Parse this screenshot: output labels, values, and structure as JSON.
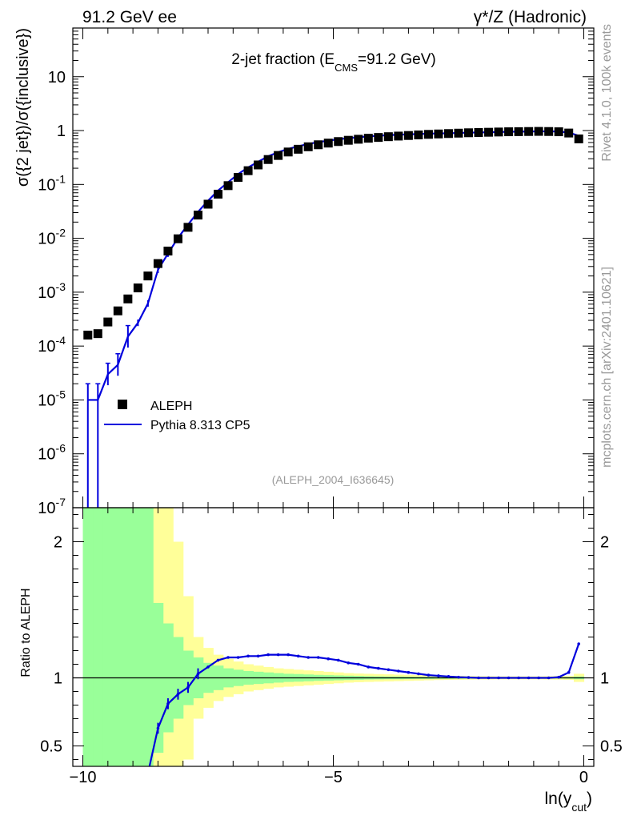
{
  "header": {
    "left": "91.2 GeV ee",
    "right": "γ*/Z (Hadronic)"
  },
  "side_text": {
    "rivet": "Rivet 4.1.0,  100k events",
    "site": "mcplots.cern.ch [arXiv:2401.10621]"
  },
  "colors": {
    "data": "#000000",
    "mc": "#0000dd",
    "band_inner": "#99ff99",
    "band_outer": "#ffff99"
  },
  "chart_data": [
    {
      "type": "scatter",
      "title": "2-jet fraction (E_CMS=91.2 GeV)",
      "title_parts": {
        "main": "2-jet fraction (E",
        "sub": "CMS",
        "tail": "=91.2 GeV)"
      },
      "analysis_tag": "(ALEPH_2004_I636645)",
      "ylabel": "σ({2 jet})/σ({inclusive})",
      "yscale": "log",
      "ylim": [
        1e-07,
        80
      ],
      "xlim": [
        -10.2,
        0.2
      ],
      "yticks": [
        {
          "base": "10",
          "exp": "-7",
          "value": 1e-07
        },
        {
          "base": "10",
          "exp": "-6",
          "value": 1e-06
        },
        {
          "base": "10",
          "exp": "-5",
          "value": 1e-05
        },
        {
          "base": "10",
          "exp": "-4",
          "value": 0.0001
        },
        {
          "base": "10",
          "exp": "-3",
          "value": 0.001
        },
        {
          "base": "10",
          "exp": "-2",
          "value": 0.01
        },
        {
          "base": "10",
          "exp": "-1",
          "value": 0.1
        },
        {
          "base": "1",
          "exp": "",
          "value": 1
        },
        {
          "base": "10",
          "exp": "",
          "value": 10
        }
      ],
      "legend": {
        "placement": "middle-left",
        "entries": [
          "ALEPH",
          "Pythia 8.313 CP5"
        ]
      },
      "x": [
        -9.9,
        -9.7,
        -9.5,
        -9.3,
        -9.1,
        -8.9,
        -8.7,
        -8.5,
        -8.3,
        -8.1,
        -7.9,
        -7.7,
        -7.5,
        -7.3,
        -7.1,
        -6.9,
        -6.7,
        -6.5,
        -6.3,
        -6.1,
        -5.9,
        -5.7,
        -5.5,
        -5.3,
        -5.1,
        -4.9,
        -4.7,
        -4.5,
        -4.3,
        -4.1,
        -3.9,
        -3.7,
        -3.5,
        -3.3,
        -3.1,
        -2.9,
        -2.7,
        -2.5,
        -2.3,
        -2.1,
        -1.9,
        -1.7,
        -1.5,
        -1.3,
        -1.1,
        -0.9,
        -0.7,
        -0.5,
        -0.3,
        -0.1
      ],
      "series": [
        {
          "name": "ALEPH",
          "marker": "square",
          "values": [
            0.00016,
            0.00017,
            0.00028,
            0.00045,
            0.00075,
            0.0012,
            0.002,
            0.0034,
            0.0058,
            0.0098,
            0.016,
            0.027,
            0.043,
            0.066,
            0.095,
            0.135,
            0.18,
            0.23,
            0.29,
            0.345,
            0.4,
            0.45,
            0.5,
            0.545,
            0.585,
            0.625,
            0.66,
            0.69,
            0.72,
            0.745,
            0.77,
            0.79,
            0.81,
            0.83,
            0.85,
            0.865,
            0.88,
            0.895,
            0.91,
            0.92,
            0.93,
            0.94,
            0.95,
            0.955,
            0.96,
            0.965,
            0.96,
            0.95,
            0.9,
            0.7
          ]
        },
        {
          "name": "Pythia 8.313 CP5",
          "marker": "line",
          "values": [
            1e-05,
            1e-05,
            3e-05,
            4.5e-05,
            0.00015,
            0.00027,
            0.00062,
            0.0026,
            0.0052,
            0.0102,
            0.018,
            0.031,
            0.05,
            0.077,
            0.11,
            0.156,
            0.207,
            0.264,
            0.333,
            0.397,
            0.457,
            0.511,
            0.564,
            0.611,
            0.65,
            0.69,
            0.724,
            0.751,
            0.778,
            0.8,
            0.822,
            0.837,
            0.851,
            0.863,
            0.876,
            0.883,
            0.893,
            0.902,
            0.915,
            0.922,
            0.931,
            0.94,
            0.95,
            0.955,
            0.96,
            0.965,
            0.965,
            0.96,
            0.92,
            0.8
          ]
        }
      ]
    },
    {
      "type": "line",
      "ylabel": "Ratio to ALEPH",
      "xlabel": "ln(y_cut)",
      "xlabel_parts": {
        "main": "ln(y",
        "sub": "cut",
        "tail": ")"
      },
      "xlim": [
        -10.2,
        0.2
      ],
      "ylim": [
        0.35,
        2.25
      ],
      "xticks": [
        "−10",
        "−5",
        "0"
      ],
      "xtick_values": [
        -10,
        -5,
        0
      ],
      "yticks_left": [
        "0.5",
        "1",
        "2"
      ],
      "yticks_right": [
        "0.5",
        "1",
        "2"
      ],
      "ytick_values": [
        0.5,
        1,
        2
      ],
      "reference_line": 1,
      "x": [
        -9.9,
        -9.7,
        -9.5,
        -9.3,
        -9.1,
        -8.9,
        -8.7,
        -8.5,
        -8.3,
        -8.1,
        -7.9,
        -7.7,
        -7.5,
        -7.3,
        -7.1,
        -6.9,
        -6.7,
        -6.5,
        -6.3,
        -6.1,
        -5.9,
        -5.7,
        -5.5,
        -5.3,
        -5.1,
        -4.9,
        -4.7,
        -4.5,
        -4.3,
        -4.1,
        -3.9,
        -3.7,
        -3.5,
        -3.3,
        -3.1,
        -2.9,
        -2.7,
        -2.5,
        -2.3,
        -2.1,
        -1.9,
        -1.7,
        -1.5,
        -1.3,
        -1.1,
        -0.9,
        -0.7,
        -0.5,
        -0.3,
        -0.1
      ],
      "series": [
        {
          "name": "Pythia 8.313 CP5 / ALEPH",
          "values": [
            null,
            null,
            null,
            null,
            null,
            null,
            0.3,
            0.63,
            0.81,
            0.88,
            0.93,
            1.03,
            1.08,
            1.13,
            1.15,
            1.15,
            1.16,
            1.16,
            1.17,
            1.17,
            1.17,
            1.16,
            1.15,
            1.15,
            1.14,
            1.13,
            1.11,
            1.1,
            1.08,
            1.07,
            1.06,
            1.05,
            1.04,
            1.03,
            1.02,
            1.015,
            1.01,
            1.005,
            1.003,
            1.0,
            1.0,
            1.0,
            1.0,
            1.0,
            1.0,
            1.0,
            1.0,
            1.005,
            1.04,
            1.25
          ]
        }
      ],
      "band_inner_halfwidth": [
        2.0,
        1.95,
        1.9,
        1.85,
        1.8,
        1.75,
        1.6,
        0.55,
        0.4,
        0.3,
        0.2,
        0.15,
        0.11,
        0.09,
        0.07,
        0.06,
        0.05,
        0.045,
        0.04,
        0.035,
        0.03,
        0.028,
        0.025,
        0.022,
        0.02,
        0.018,
        0.016,
        0.014,
        0.012,
        0.011,
        0.01,
        0.01,
        0.009,
        0.008,
        0.008,
        0.007,
        0.007,
        0.006,
        0.006,
        0.006,
        0.005,
        0.005,
        0.005,
        0.005,
        0.005,
        0.005,
        0.005,
        0.005,
        0.006,
        0.01
      ],
      "band_outer_halfwidth": [
        2.0,
        2.0,
        2.0,
        2.0,
        2.0,
        2.0,
        2.0,
        1.9,
        1.65,
        1.0,
        0.6,
        0.3,
        0.22,
        0.17,
        0.14,
        0.12,
        0.1,
        0.09,
        0.08,
        0.07,
        0.065,
        0.06,
        0.055,
        0.05,
        0.045,
        0.04,
        0.035,
        0.032,
        0.03,
        0.028,
        0.026,
        0.024,
        0.022,
        0.02,
        0.018,
        0.016,
        0.015,
        0.014,
        0.013,
        0.012,
        0.012,
        0.011,
        0.011,
        0.011,
        0.011,
        0.011,
        0.012,
        0.013,
        0.014,
        0.03
      ]
    }
  ]
}
